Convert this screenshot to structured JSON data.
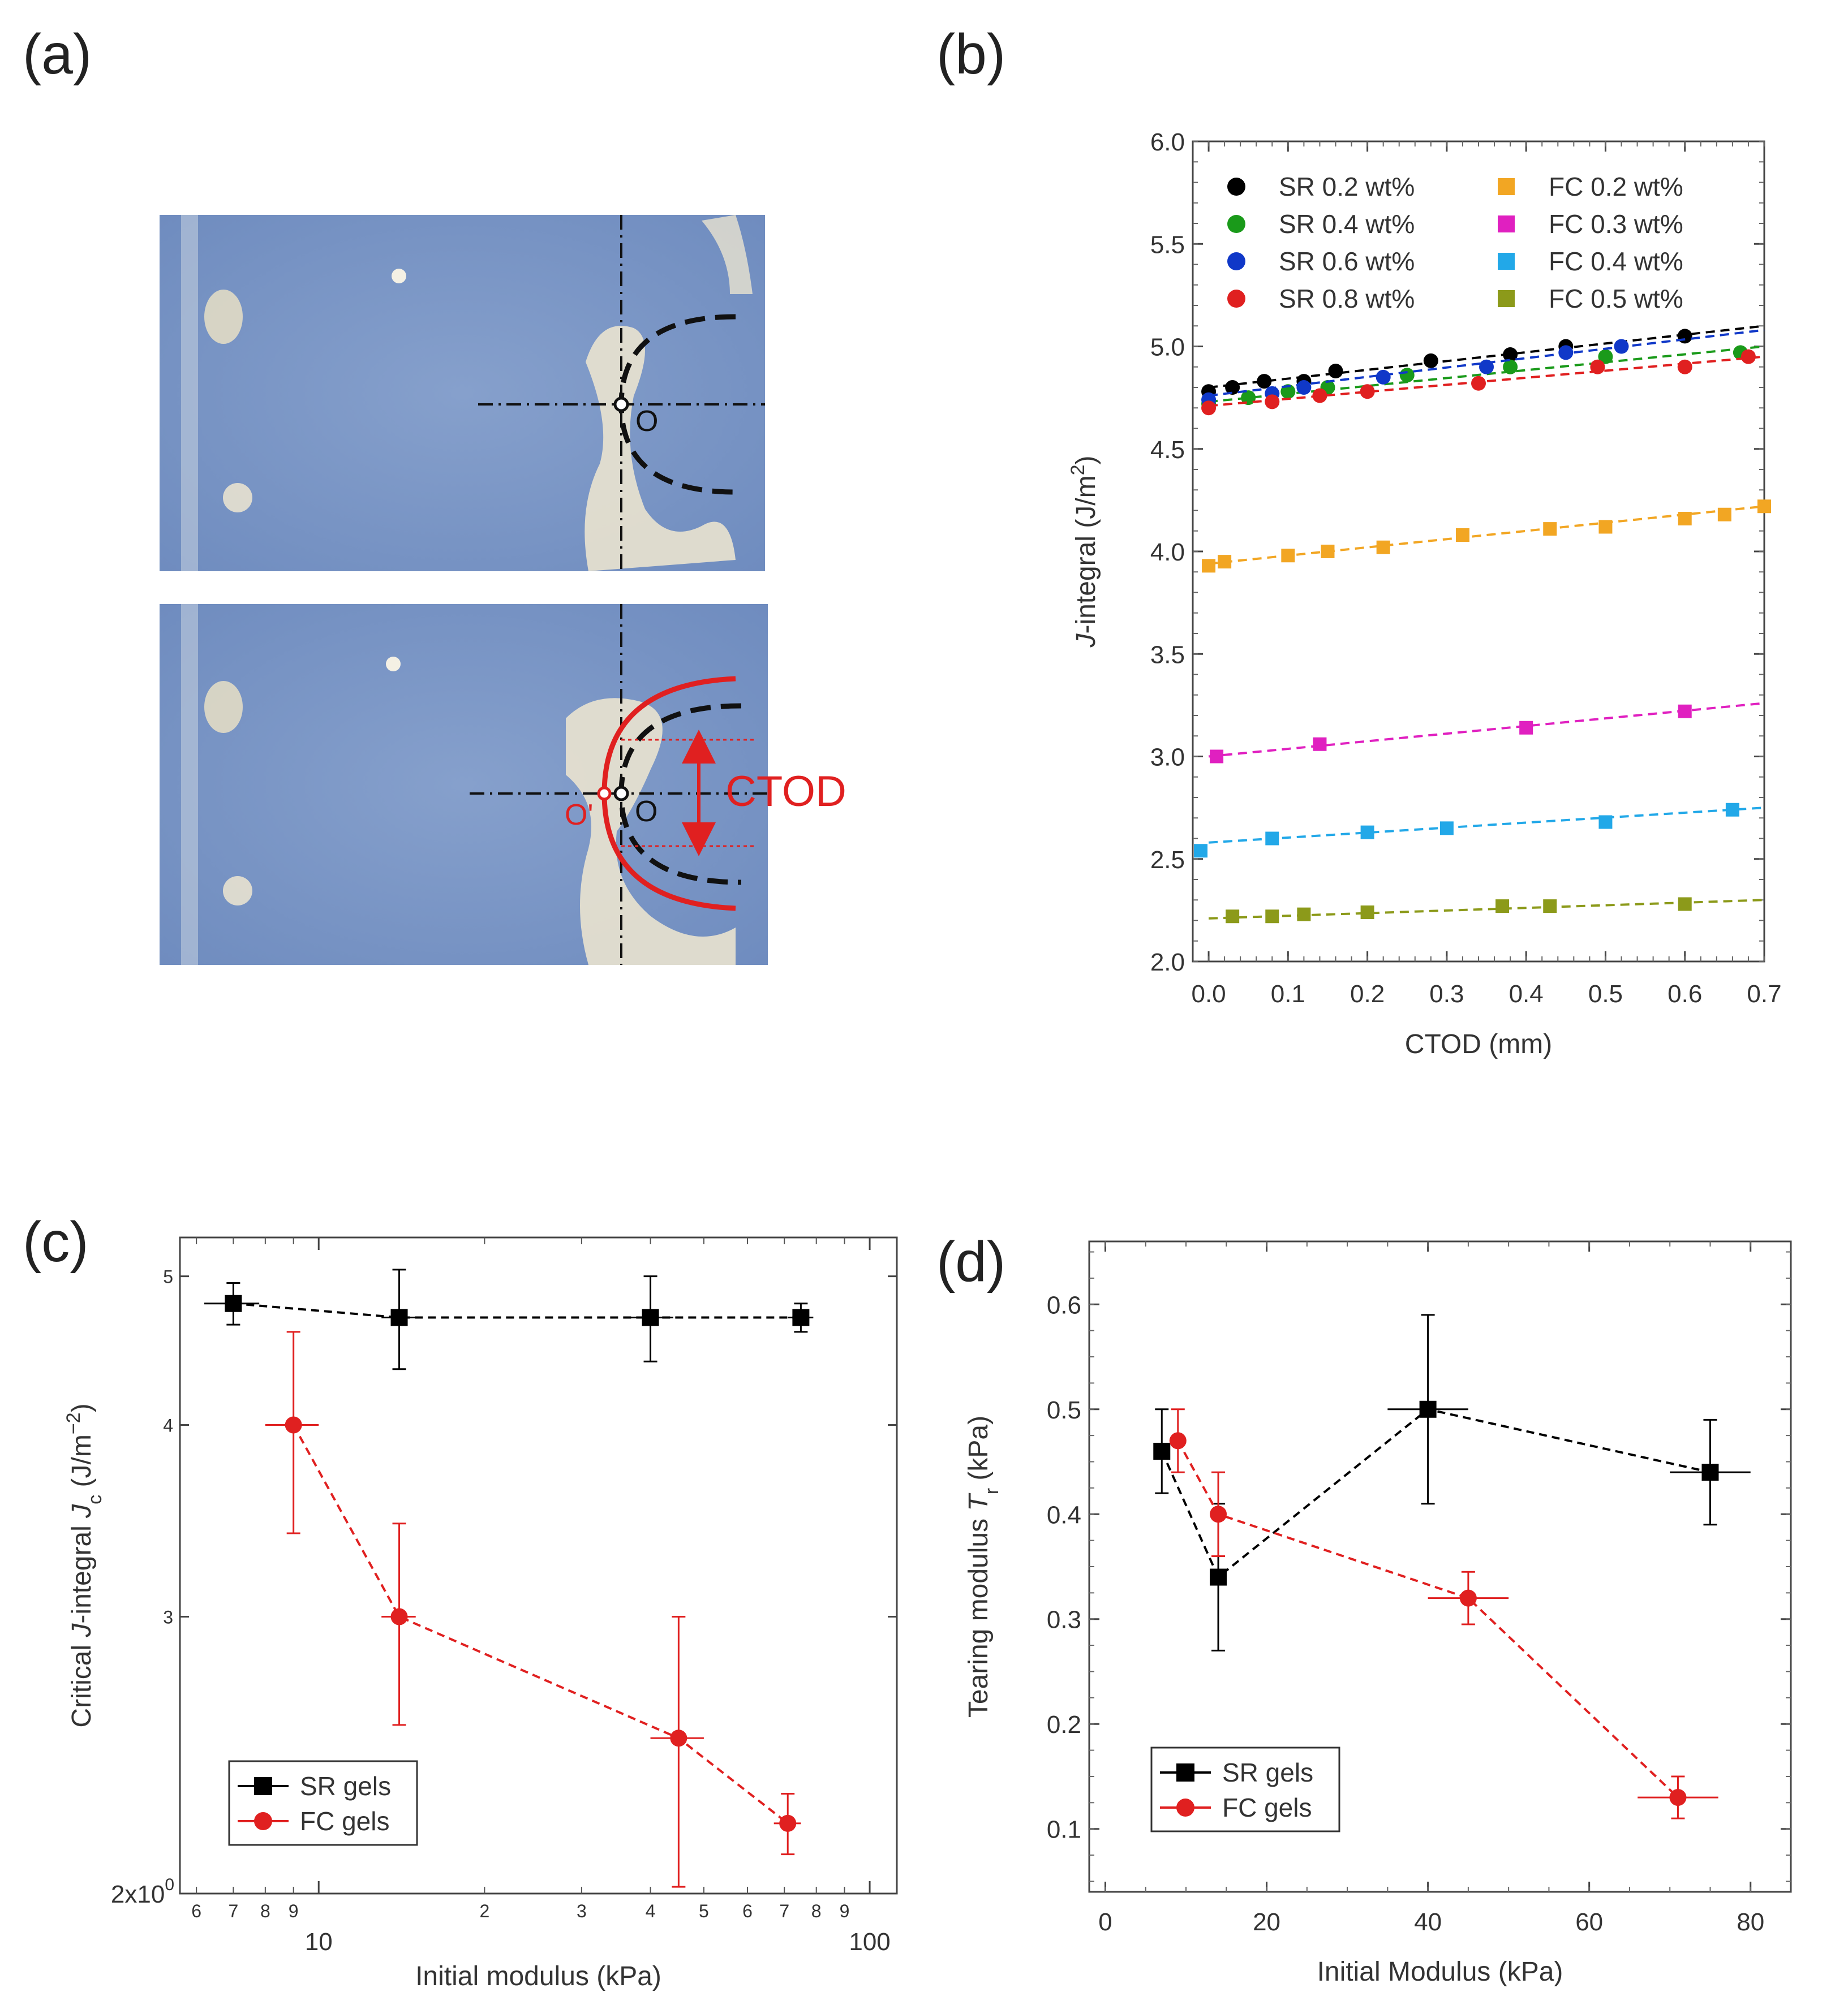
{
  "panels": {
    "a": {
      "label": "(a)",
      "photo": {
        "point_o": "O",
        "point_o_prime": "O'",
        "ctod_label": "CTOD",
        "colors": {
          "gel": "#7f99c6",
          "crack": "#e02020",
          "dashed": "#111111"
        }
      }
    },
    "b": {
      "label": "(b)"
    },
    "c": {
      "label": "(c)"
    },
    "d": {
      "label": "(d)"
    }
  },
  "chart_data": [
    {
      "id": "b",
      "type": "scatter",
      "xlabel": "CTOD (mm)",
      "ylabel": "J-integral  (J/m²)",
      "ylabel_parts": [
        "J",
        "-integral  (J/m",
        "2",
        ")"
      ],
      "xlim": [
        -0.02,
        0.7
      ],
      "ylim": [
        2.0,
        6.0
      ],
      "xticks": [
        0.0,
        0.1,
        0.2,
        0.3,
        0.4,
        0.5,
        0.6,
        0.7
      ],
      "yticks": [
        2.0,
        2.5,
        3.0,
        3.5,
        4.0,
        4.5,
        5.0,
        5.5,
        6.0
      ],
      "tick_labels_x": [
        "0.0",
        "0.1",
        "0.2",
        "0.3",
        "0.4",
        "0.5",
        "0.6",
        "0.7"
      ],
      "tick_labels_y": [
        "2.0",
        "2.5",
        "3.0",
        "3.5",
        "4.0",
        "4.5",
        "5.0",
        "5.5",
        "6.0"
      ],
      "legend_position": "top",
      "series": [
        {
          "name": "SR 0.2 wt%",
          "marker": "circle",
          "color": "#000000",
          "x": [
            0.0,
            0.03,
            0.07,
            0.12,
            0.16,
            0.28,
            0.38,
            0.45,
            0.6
          ],
          "y": [
            4.78,
            4.8,
            4.83,
            4.83,
            4.88,
            4.93,
            4.96,
            5.0,
            5.05
          ],
          "fit": [
            [
              0.0,
              4.8
            ],
            [
              0.7,
              5.1
            ]
          ]
        },
        {
          "name": "SR 0.4 wt%",
          "marker": "circle",
          "color": "#1a9a1a",
          "x": [
            0.0,
            0.05,
            0.1,
            0.15,
            0.25,
            0.38,
            0.5,
            0.67
          ],
          "y": [
            4.72,
            4.75,
            4.78,
            4.8,
            4.86,
            4.9,
            4.95,
            4.97
          ],
          "fit": [
            [
              0.0,
              4.73
            ],
            [
              0.7,
              5.0
            ]
          ]
        },
        {
          "name": "SR 0.6 wt%",
          "marker": "circle",
          "color": "#1038c8",
          "x": [
            0.0,
            0.08,
            0.12,
            0.22,
            0.35,
            0.45,
            0.52
          ],
          "y": [
            4.74,
            4.77,
            4.8,
            4.85,
            4.9,
            4.97,
            5.0
          ],
          "fit": [
            [
              0.0,
              4.76
            ],
            [
              0.7,
              5.08
            ]
          ]
        },
        {
          "name": "SR 0.8 wt%",
          "marker": "circle",
          "color": "#e02020",
          "x": [
            0.0,
            0.08,
            0.14,
            0.2,
            0.34,
            0.49,
            0.6,
            0.68
          ],
          "y": [
            4.7,
            4.73,
            4.76,
            4.78,
            4.82,
            4.9,
            4.9,
            4.95
          ],
          "fit": [
            [
              0.0,
              4.71
            ],
            [
              0.7,
              4.95
            ]
          ]
        },
        {
          "name": "FC 0.2 wt%",
          "marker": "square",
          "color": "#f2a623",
          "x": [
            0.0,
            0.02,
            0.1,
            0.15,
            0.22,
            0.32,
            0.43,
            0.5,
            0.6,
            0.65,
            0.7
          ],
          "y": [
            3.93,
            3.95,
            3.98,
            4.0,
            4.02,
            4.08,
            4.11,
            4.12,
            4.16,
            4.18,
            4.22
          ],
          "fit": [
            [
              0.0,
              3.94
            ],
            [
              0.7,
              4.22
            ]
          ]
        },
        {
          "name": "FC 0.3 wt%",
          "marker": "square",
          "color": "#e020c0",
          "x": [
            0.01,
            0.14,
            0.4,
            0.6
          ],
          "y": [
            3.0,
            3.06,
            3.14,
            3.22
          ],
          "fit": [
            [
              0.0,
              3.0
            ],
            [
              0.7,
              3.26
            ]
          ]
        },
        {
          "name": "FC 0.4 wt%",
          "marker": "square",
          "color": "#22a8e8",
          "x": [
            -0.01,
            0.08,
            0.2,
            0.3,
            0.5,
            0.66
          ],
          "y": [
            2.54,
            2.6,
            2.63,
            2.65,
            2.68,
            2.74
          ],
          "fit": [
            [
              0.0,
              2.58
            ],
            [
              0.7,
              2.75
            ]
          ]
        },
        {
          "name": "FC 0.5 wt%",
          "marker": "square",
          "color": "#8c9a1a",
          "x": [
            0.03,
            0.08,
            0.12,
            0.2,
            0.37,
            0.43,
            0.6
          ],
          "y": [
            2.22,
            2.22,
            2.23,
            2.24,
            2.27,
            2.27,
            2.28
          ],
          "fit": [
            [
              0.0,
              2.21
            ],
            [
              0.7,
              2.3
            ]
          ]
        }
      ]
    },
    {
      "id": "c",
      "type": "line",
      "xlabel": "Initial modulus (kPa)",
      "ylabel": "Critical J-integral Jc (J/m⁻²)",
      "ylabel_parts": [
        "Critical ",
        "J",
        "-integral ",
        "J",
        "c",
        " (J/m",
        "−2",
        ")"
      ],
      "x_scale": "log",
      "y_scale": "log",
      "xlim": [
        5.6,
        112
      ],
      "ylim": [
        1.98,
        5.3
      ],
      "major_x_labels": [
        {
          "v": 10,
          "t": "10"
        },
        {
          "v": 100,
          "t": "100"
        }
      ],
      "minor_x_labels": [
        {
          "v": 6,
          "t": "6"
        },
        {
          "v": 7,
          "t": "7"
        },
        {
          "v": 8,
          "t": "8"
        },
        {
          "v": 9,
          "t": "9"
        },
        {
          "v": 20,
          "t": "2"
        },
        {
          "v": 30,
          "t": "3"
        },
        {
          "v": 40,
          "t": "4"
        },
        {
          "v": 50,
          "t": "5"
        },
        {
          "v": 60,
          "t": "6"
        },
        {
          "v": 70,
          "t": "7"
        },
        {
          "v": 80,
          "t": "8"
        },
        {
          "v": 90,
          "t": "9"
        }
      ],
      "y_labels": [
        {
          "v": 3,
          "t": "3"
        },
        {
          "v": 4,
          "t": "4"
        },
        {
          "v": 5,
          "t": "5"
        }
      ],
      "y_bottom_label": {
        "v": 2,
        "base": "2x10",
        "exp": "0"
      },
      "legend_position": "bottom-left",
      "series": [
        {
          "name": "SR gels",
          "marker": "square",
          "color": "#000000",
          "x": [
            7,
            14,
            40,
            75
          ],
          "y": [
            4.8,
            4.7,
            4.7,
            4.7
          ],
          "xerr": [
            0.8,
            1.0,
            4.0,
            4.0
          ],
          "yerr": [
            0.15,
            0.35,
            0.3,
            0.1
          ]
        },
        {
          "name": "FC gels",
          "marker": "circle",
          "color": "#e02020",
          "x": [
            9,
            14,
            45,
            71
          ],
          "y": [
            4.0,
            3.0,
            2.5,
            2.2
          ],
          "xerr": [
            1.0,
            1.0,
            5.0,
            4.0
          ],
          "yerr": [
            0.6,
            0.45,
            0.5,
            0.1
          ]
        }
      ]
    },
    {
      "id": "d",
      "type": "line",
      "xlabel": "Initial Modulus (kPa)",
      "ylabel": "Tearing modulus Tr (kPa)",
      "ylabel_parts": [
        "Tearing modulus ",
        "T",
        "r",
        " (kPa)"
      ],
      "xlim": [
        -2,
        85
      ],
      "ylim": [
        0.04,
        0.66
      ],
      "xticks": [
        0,
        20,
        40,
        60,
        80
      ],
      "yticks": [
        0.1,
        0.2,
        0.3,
        0.4,
        0.5,
        0.6
      ],
      "tick_labels_x": [
        "0",
        "20",
        "40",
        "60",
        "80"
      ],
      "tick_labels_y": [
        "0.1",
        "0.2",
        "0.3",
        "0.4",
        "0.5",
        "0.6"
      ],
      "legend_position": "bottom-left",
      "series": [
        {
          "name": "SR gels",
          "marker": "square",
          "color": "#000000",
          "x": [
            7,
            14,
            40,
            75
          ],
          "y": [
            0.46,
            0.34,
            0.5,
            0.44
          ],
          "xerr": [
            1.0,
            1.0,
            5.0,
            5.0
          ],
          "yerr": [
            0.04,
            0.07,
            0.09,
            0.05
          ]
        },
        {
          "name": "FC gels",
          "marker": "circle",
          "color": "#e02020",
          "x": [
            9,
            14,
            45,
            71
          ],
          "y": [
            0.47,
            0.4,
            0.32,
            0.13
          ],
          "xerr": [
            1.0,
            1.0,
            5.0,
            5.0
          ],
          "yerr": [
            0.03,
            0.04,
            0.025,
            0.02
          ]
        }
      ]
    }
  ]
}
